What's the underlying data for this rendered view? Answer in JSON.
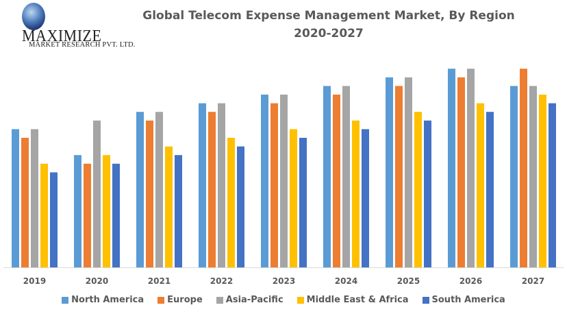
{
  "logo": {
    "brand": "MAXIMIZE",
    "subtitle": "MARKET RESEARCH PVT. LTD."
  },
  "chart_data": {
    "type": "bar",
    "title": "Global Telecom Expense Management Market, By Region",
    "subtitle": "2020-2027",
    "xlabel": "",
    "ylabel": "",
    "grid": false,
    "legend_position": "bottom",
    "y_axis_shown": false,
    "value_units": "relative (no axis scale shown)",
    "ylim": [
      0,
      23
    ],
    "categories": [
      "2019",
      "2020",
      "2021",
      "2022",
      "2023",
      "2024",
      "2025",
      "2026",
      "2027"
    ],
    "series": [
      {
        "name": "North America",
        "color": "#5B9BD5",
        "values": [
          16,
          13,
          18,
          19,
          20,
          21,
          22,
          23,
          21
        ]
      },
      {
        "name": "Europe",
        "color": "#ED7D31",
        "values": [
          15,
          12,
          17,
          18,
          19,
          20,
          21,
          22,
          23
        ]
      },
      {
        "name": "Asia-Pacific",
        "color": "#A5A5A5",
        "values": [
          16,
          17,
          18,
          19,
          20,
          21,
          22,
          23,
          21
        ]
      },
      {
        "name": "Middle East & Africa",
        "color": "#FFC000",
        "values": [
          12,
          13,
          14,
          15,
          16,
          17,
          18,
          19,
          20
        ]
      },
      {
        "name": "South America",
        "color": "#4472C4",
        "values": [
          11,
          12,
          13,
          14,
          15,
          16,
          17,
          18,
          19
        ]
      }
    ]
  }
}
